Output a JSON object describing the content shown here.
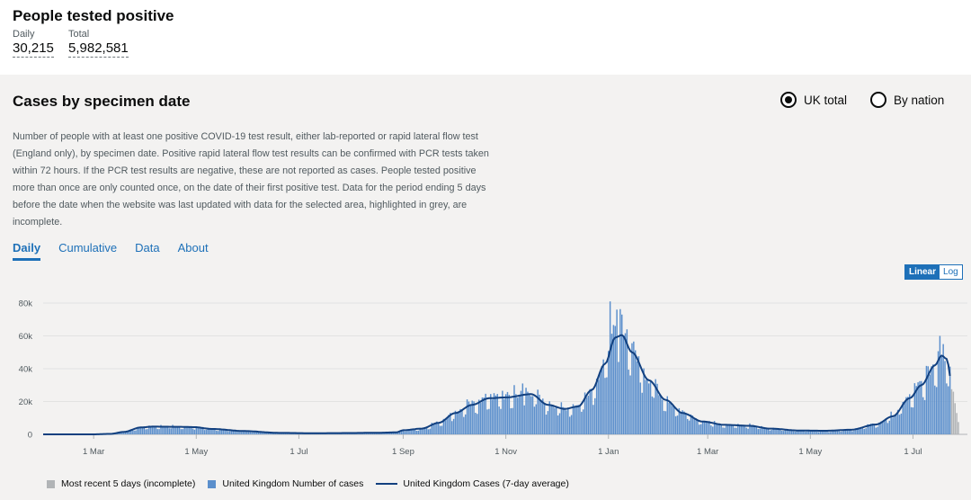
{
  "header": {
    "title": "People tested positive",
    "daily_label": "Daily",
    "daily_value": "30,215",
    "total_label": "Total",
    "total_value": "5,982,581"
  },
  "card": {
    "title": "Cases by specimen date",
    "radios": [
      {
        "label": "UK total",
        "selected": true
      },
      {
        "label": "By nation",
        "selected": false
      }
    ],
    "description": "Number of people with at least one positive COVID-19 test result, either lab-reported or rapid lateral flow test (England only), by specimen date. Positive rapid lateral flow test results can be confirmed with PCR tests taken within 72 hours. If the PCR test results are negative, these are not reported as cases. People tested positive more than once are only counted once, on the date of their first positive test. Data for the period ending 5 days before the date when the website was last updated with data for the selected area, highlighted in grey, are incomplete.",
    "tabs": [
      {
        "label": "Daily",
        "active": true
      },
      {
        "label": "Cumulative",
        "active": false
      },
      {
        "label": "Data",
        "active": false
      },
      {
        "label": "About",
        "active": false
      }
    ],
    "scale": {
      "linear": "Linear",
      "log": "Log"
    }
  },
  "colors": {
    "bar": "#5b8fcc",
    "line": "#12407f",
    "incomplete": "#b1b4b6",
    "grid": "#e2e2e2",
    "accent": "#1d70b8"
  },
  "chart_data": {
    "type": "bar",
    "title": "Cases by specimen date",
    "x_range": [
      "2020-01-30",
      "2021-07-28"
    ],
    "ylim": [
      0,
      85000
    ],
    "y_ticks": [
      {
        "value": 0,
        "label": "0"
      },
      {
        "value": 20000,
        "label": "20k"
      },
      {
        "value": 40000,
        "label": "40k"
      },
      {
        "value": 60000,
        "label": "60k"
      },
      {
        "value": 80000,
        "label": "80k"
      }
    ],
    "x_ticks": [
      {
        "day": 30,
        "label": "1 Mar"
      },
      {
        "day": 91,
        "label": "1 May"
      },
      {
        "day": 152,
        "label": "1 Jul"
      },
      {
        "day": 214,
        "label": "1 Sep"
      },
      {
        "day": 275,
        "label": "1 Nov"
      },
      {
        "day": 336,
        "label": "1 Jan"
      },
      {
        "day": 395,
        "label": "1 Mar"
      },
      {
        "day": 456,
        "label": "1 May"
      },
      {
        "day": 517,
        "label": "1 Jul"
      }
    ],
    "total_days": 545,
    "incomplete_days": 5,
    "series": [
      {
        "name": "United Kingdom Number of cases",
        "kind": "bar",
        "color": "#5b8fcc"
      },
      {
        "name": "United Kingdom Cases (7-day average)",
        "kind": "line",
        "color": "#12407f"
      }
    ],
    "avg_keypoints": [
      [
        0,
        0
      ],
      [
        30,
        0
      ],
      [
        40,
        300
      ],
      [
        48,
        1500
      ],
      [
        58,
        4200
      ],
      [
        65,
        4700
      ],
      [
        80,
        4600
      ],
      [
        90,
        4400
      ],
      [
        100,
        3300
      ],
      [
        120,
        2000
      ],
      [
        140,
        900
      ],
      [
        160,
        700
      ],
      [
        180,
        800
      ],
      [
        200,
        1000
      ],
      [
        210,
        1200
      ],
      [
        214,
        2500
      ],
      [
        225,
        3500
      ],
      [
        235,
        7000
      ],
      [
        245,
        13000
      ],
      [
        255,
        18000
      ],
      [
        265,
        22000
      ],
      [
        275,
        22500
      ],
      [
        290,
        24500
      ],
      [
        300,
        18000
      ],
      [
        310,
        15500
      ],
      [
        318,
        17000
      ],
      [
        326,
        27000
      ],
      [
        334,
        43000
      ],
      [
        340,
        59000
      ],
      [
        344,
        60500
      ],
      [
        350,
        50000
      ],
      [
        360,
        33000
      ],
      [
        370,
        21000
      ],
      [
        380,
        13000
      ],
      [
        392,
        7800
      ],
      [
        405,
        5800
      ],
      [
        420,
        5200
      ],
      [
        432,
        3500
      ],
      [
        450,
        2300
      ],
      [
        465,
        2200
      ],
      [
        480,
        2800
      ],
      [
        495,
        6000
      ],
      [
        505,
        11000
      ],
      [
        515,
        22000
      ],
      [
        522,
        30000
      ],
      [
        530,
        42000
      ],
      [
        534,
        48000
      ],
      [
        537,
        46000
      ],
      [
        540,
        32000
      ],
      [
        545,
        25000
      ]
    ],
    "spikes": [
      {
        "day": 337,
        "value": 81000
      },
      {
        "day": 341,
        "value": 76000
      },
      {
        "day": 344,
        "value": 73000
      },
      {
        "day": 347,
        "value": 64000
      },
      {
        "day": 533,
        "value": 60000
      },
      {
        "day": 535,
        "value": 55000
      },
      {
        "day": 280,
        "value": 30000
      },
      {
        "day": 285,
        "value": 31000
      }
    ],
    "incomplete_values": [
      27500,
      26000,
      19000,
      13000,
      7500
    ]
  },
  "legend": {
    "incomplete": "Most recent 5 days (incomplete)",
    "bars": "United Kingdom Number of cases",
    "line": "United Kingdom Cases (7-day average)"
  }
}
